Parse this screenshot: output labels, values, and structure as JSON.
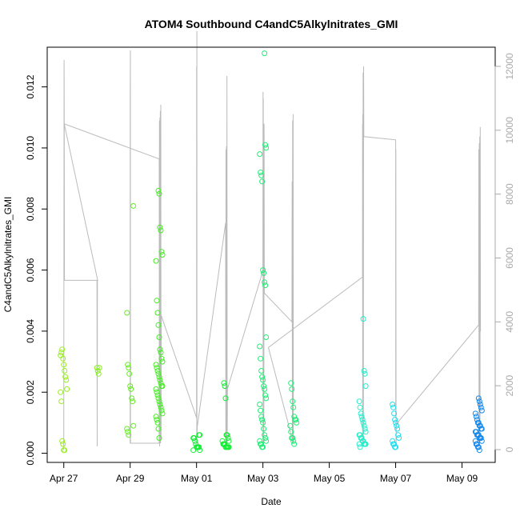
{
  "chart_data": {
    "type": "scatter",
    "title": "ATOM4 Southbound C4andC5Alkylnitrates_GMI",
    "xlabel": "Date",
    "ylabel": "C4andC5Alkylnitrates_GMI",
    "x_tick_labels": [
      "Apr 27",
      "Apr 29",
      "May 01",
      "May 03",
      "May 05",
      "May 07",
      "May 09"
    ],
    "x_tick_dates": [
      "2018-04-27",
      "2018-04-29",
      "2018-05-01",
      "2018-05-03",
      "2018-05-05",
      "2018-05-07",
      "2018-05-09"
    ],
    "xlim": [
      "2018-04-26T12:00",
      "2018-05-10T00:00"
    ],
    "y_ticks": [
      0.0,
      0.002,
      0.004,
      0.006,
      0.008,
      0.01,
      0.012
    ],
    "y_tick_labels": [
      "0.000",
      "0.002",
      "0.004",
      "0.006",
      "0.008",
      "0.010",
      "0.012"
    ],
    "ylim": [
      -0.0003,
      0.0133
    ],
    "y2_ticks": [
      0,
      2000,
      4000,
      6000,
      8000,
      10000,
      12000
    ],
    "y2_tick_labels": [
      "0",
      "2000",
      "4000",
      "6000",
      "8000",
      "10000",
      "12000"
    ],
    "y2lim": [
      -400,
      12600
    ],
    "grid": false,
    "colors": {
      "axis": "#000000",
      "right_axis": "#aaaaaa",
      "altitude_line": "#bbbbbb"
    },
    "series": [
      {
        "role": "C4andC5Alkylnitrates_GMI by flight (markers)",
        "flights": [
          {
            "date": "2018-04-27T00:00",
            "color": "#99ee22",
            "values": [
              0.0032,
              0.0033,
              0.0034,
              0.0031,
              0.0029,
              0.0027,
              0.0025,
              0.0024,
              0.0021,
              0.002,
              0.0017,
              0.0004,
              0.0003,
              0.0001,
              0.0001
            ]
          },
          {
            "date": "2018-04-28T00:00",
            "color": "#88ee22",
            "values": [
              0.0028,
              0.0027,
              0.0026,
              0.0028
            ]
          },
          {
            "date": "2018-04-29T00:00",
            "color": "#66ee22",
            "values": [
              0.0081,
              0.0046,
              0.0029,
              0.0028,
              0.0026,
              0.0022,
              0.0021,
              0.0018,
              0.0017,
              0.0009,
              0.0008,
              0.0007,
              0.0006
            ]
          },
          {
            "date": "2018-04-29T21:00",
            "color": "#44ee22",
            "values": [
              0.0086,
              0.0085,
              0.0074,
              0.0073,
              0.0066,
              0.0065,
              0.0063,
              0.005,
              0.0046,
              0.0042,
              0.0038,
              0.0034,
              0.0033,
              0.0031,
              0.003,
              0.0029,
              0.0028,
              0.0027,
              0.0026,
              0.0025,
              0.0024,
              0.0023,
              0.0022,
              0.0022,
              0.0021,
              0.002,
              0.0019,
              0.0018,
              0.0017,
              0.0016,
              0.0015,
              0.0014,
              0.0013,
              0.0012,
              0.0011,
              0.001,
              0.0008,
              0.0005
            ]
          },
          {
            "date": "2018-05-01T00:00",
            "color": "#11ee33",
            "values": [
              0.0006,
              0.0006,
              0.0005,
              0.0005,
              0.0004,
              0.0003,
              0.0002,
              0.0002,
              0.0002,
              0.0002,
              0.0001,
              0.0001
            ]
          },
          {
            "date": "2018-05-01T21:00",
            "color": "#11ee33",
            "values": [
              0.0023,
              0.0022,
              0.0018,
              0.0006,
              0.0006,
              0.0005,
              0.0004,
              0.0004,
              0.0003,
              0.0003,
              0.0003,
              0.0002,
              0.0002,
              0.0002,
              0.0002,
              0.0002
            ]
          },
          {
            "date": "2018-05-03T00:00",
            "color": "#22ee77",
            "values": [
              0.0131,
              0.0101,
              0.01,
              0.0098,
              0.0092,
              0.0091,
              0.0089,
              0.006,
              0.0059,
              0.0056,
              0.0055,
              0.0038,
              0.0035,
              0.0031,
              0.0027,
              0.0025,
              0.0024,
              0.0022,
              0.0021,
              0.0019,
              0.0018,
              0.0016,
              0.0014,
              0.0012,
              0.0011,
              0.001,
              0.0008,
              0.0006,
              0.0005,
              0.0004,
              0.0004,
              0.0003,
              0.0003,
              0.0002,
              0.0002
            ]
          },
          {
            "date": "2018-05-03T22:00",
            "color": "#22ee77",
            "values": [
              0.0023,
              0.0021,
              0.0017,
              0.0015,
              0.0012,
              0.0011,
              0.0011,
              0.001,
              0.0009,
              0.0007,
              0.0005,
              0.0005,
              0.0004,
              0.0003
            ]
          },
          {
            "date": "2018-05-06T00:00",
            "color": "#22eecc",
            "values": [
              0.0044,
              0.0027,
              0.0026,
              0.0022,
              0.0017,
              0.0015,
              0.0013,
              0.0012,
              0.0011,
              0.001,
              0.0009,
              0.0008,
              0.0007,
              0.0006,
              0.0006,
              0.0005,
              0.0005,
              0.0004,
              0.0004,
              0.0003,
              0.0003,
              0.0003,
              0.0003,
              0.0002
            ]
          },
          {
            "date": "2018-05-07T00:00",
            "color": "#22ddee",
            "values": [
              0.0016,
              0.0015,
              0.0013,
              0.0011,
              0.001,
              0.0009,
              0.0008,
              0.0006,
              0.0005,
              0.0004,
              0.0003,
              0.0003,
              0.0002,
              0.0002
            ]
          },
          {
            "date": "2018-05-09T12:00",
            "color": "#1188ee",
            "values": [
              0.0018,
              0.0017,
              0.0016,
              0.0015,
              0.0014,
              0.0013,
              0.0012,
              0.0011,
              0.001,
              0.001,
              0.0009,
              0.0009,
              0.0008,
              0.0008,
              0.0007,
              0.0007,
              0.0006,
              0.0006,
              0.0006,
              0.0005,
              0.0005,
              0.0005,
              0.0004,
              0.0004,
              0.0003,
              0.0003,
              0.0002,
              0.0002,
              0.0001
            ]
          }
        ]
      },
      {
        "role": "altitude (right axis, grey line)",
        "points": [
          [
            "2018-04-27T00:00",
            0
          ],
          [
            "2018-04-27T00:12",
            12200
          ],
          [
            "2018-04-27T00:20",
            10200
          ],
          [
            "2018-04-27T00:30",
            5300
          ],
          [
            "2018-04-27T01:00",
            5300
          ],
          [
            "2018-04-28T00:00",
            5300
          ],
          [
            "2018-04-28T00:10",
            100
          ],
          [
            "2018-04-28T00:20",
            5300
          ],
          [
            "2018-04-28T00:30",
            5300
          ],
          [
            "2018-04-27T00:20",
            10200
          ],
          [
            "2018-04-29T21:00",
            9100
          ],
          [
            "2018-04-29T21:10",
            200
          ],
          [
            "2018-04-29T00:00",
            200
          ],
          [
            "2018-04-29T00:05",
            11100
          ],
          [
            "2018-04-29T00:10",
            12500
          ],
          [
            "2018-04-29T00:15",
            200
          ],
          [
            "2018-04-29T21:00",
            200
          ],
          [
            "2018-04-29T21:10",
            10300
          ],
          [
            "2018-04-29T21:20",
            100
          ],
          [
            "2018-04-29T21:30",
            10400
          ],
          [
            "2018-04-29T21:40",
            200
          ],
          [
            "2018-04-29T21:50",
            10600
          ],
          [
            "2018-04-29T22:00",
            200
          ],
          [
            "2018-04-29T22:10",
            10800
          ],
          [
            "2018-04-29T22:20",
            300
          ],
          [
            "2018-04-29T22:30",
            4200
          ],
          [
            "2018-04-30T00:00",
            4000
          ],
          [
            "2018-05-01T00:00",
            1000
          ],
          [
            "2018-05-01T00:05",
            12000
          ],
          [
            "2018-05-01T00:10",
            100
          ],
          [
            "2018-05-01T00:15",
            13100
          ],
          [
            "2018-05-01T00:20",
            200
          ],
          [
            "2018-05-01T00:30",
            700
          ],
          [
            "2018-05-01T21:00",
            7100
          ],
          [
            "2018-05-01T21:10",
            100
          ],
          [
            "2018-05-01T21:20",
            9400
          ],
          [
            "2018-05-01T21:30",
            100
          ],
          [
            "2018-05-01T21:40",
            9500
          ],
          [
            "2018-05-01T21:50",
            200
          ],
          [
            "2018-05-01T22:00",
            11700
          ],
          [
            "2018-05-01T22:10",
            200
          ],
          [
            "2018-05-01T22:20",
            1900
          ],
          [
            "2018-05-03T00:00",
            5600
          ],
          [
            "2018-05-03T00:05",
            11200
          ],
          [
            "2018-05-03T00:10",
            200
          ],
          [
            "2018-05-03T00:15",
            11000
          ],
          [
            "2018-05-03T00:20",
            300
          ],
          [
            "2018-05-03T00:30",
            8200
          ],
          [
            "2018-05-03T00:40",
            200
          ],
          [
            "2018-05-03T00:50",
            10200
          ],
          [
            "2018-05-03T01:00",
            4900
          ],
          [
            "2018-05-03T21:00",
            4000
          ],
          [
            "2018-05-03T21:10",
            8400
          ],
          [
            "2018-05-03T21:20",
            200
          ],
          [
            "2018-05-03T21:30",
            10300
          ],
          [
            "2018-05-03T21:40",
            200
          ],
          [
            "2018-05-03T21:50",
            10500
          ],
          [
            "2018-05-03T22:00",
            200
          ],
          [
            "2018-05-03T04:00",
            3200
          ],
          [
            "2018-05-06T00:00",
            5400
          ],
          [
            "2018-05-06T00:05",
            10200
          ],
          [
            "2018-05-06T00:10",
            100
          ],
          [
            "2018-05-06T00:15",
            10500
          ],
          [
            "2018-05-06T00:20",
            200
          ],
          [
            "2018-05-06T00:30",
            11800
          ],
          [
            "2018-05-06T00:40",
            200
          ],
          [
            "2018-05-06T00:50",
            12000
          ],
          [
            "2018-05-06T01:00",
            9800
          ],
          [
            "2018-05-07T00:00",
            9700
          ],
          [
            "2018-05-07T00:05",
            1000
          ],
          [
            "2018-05-07T00:10",
            9400
          ],
          [
            "2018-05-07T00:20",
            200
          ],
          [
            "2018-05-07T00:30",
            800
          ],
          [
            "2018-05-09T12:00",
            3900
          ],
          [
            "2018-05-09T12:10",
            9400
          ],
          [
            "2018-05-09T12:20",
            200
          ],
          [
            "2018-05-09T12:30",
            9600
          ],
          [
            "2018-05-09T12:40",
            200
          ],
          [
            "2018-05-09T12:50",
            9800
          ],
          [
            "2018-05-09T13:00",
            200
          ],
          [
            "2018-05-09T13:10",
            10100
          ],
          [
            "2018-05-09T13:20",
            3700
          ]
        ]
      }
    ]
  }
}
